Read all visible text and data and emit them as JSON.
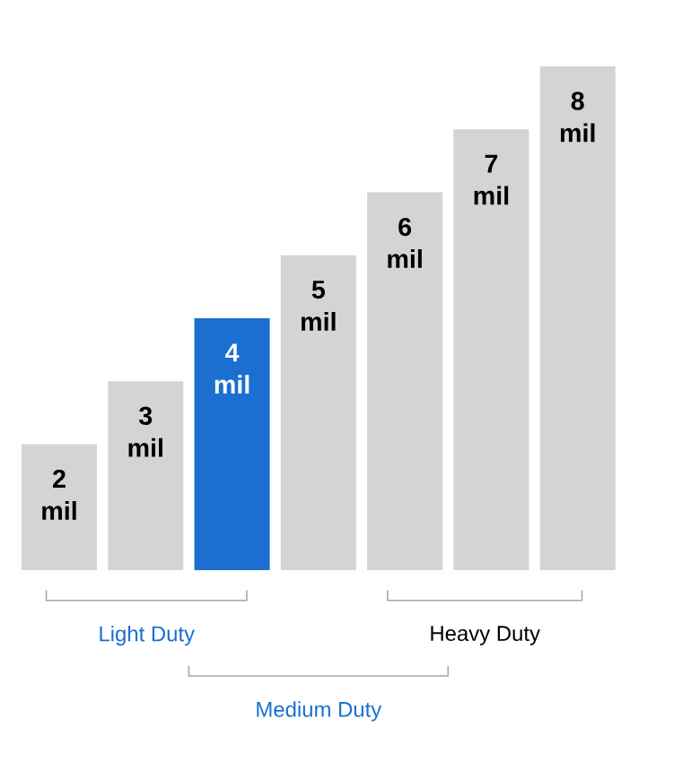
{
  "chart_data": {
    "type": "bar",
    "tick_labels": false,
    "ylim": [
      0,
      8
    ],
    "categories": [
      null,
      null,
      null,
      null,
      null,
      null,
      null
    ],
    "values": [
      2,
      3,
      4,
      5,
      6,
      7,
      8
    ],
    "colors": [
      "#d4d4d4",
      "#d4d4d4",
      "#1a6fd1",
      "#d4d4d4",
      "#d4d4d4",
      "#d4d4d4",
      "#d4d4d4"
    ],
    "value_labels": [
      "2 mil",
      "3 mil",
      "4 mil",
      "5 mil",
      "6 mil",
      "7 mil",
      "8 mil"
    ],
    "annotations": [
      "Light Duty",
      "Medium Duty",
      "Heavy Duty"
    ]
  }
}
